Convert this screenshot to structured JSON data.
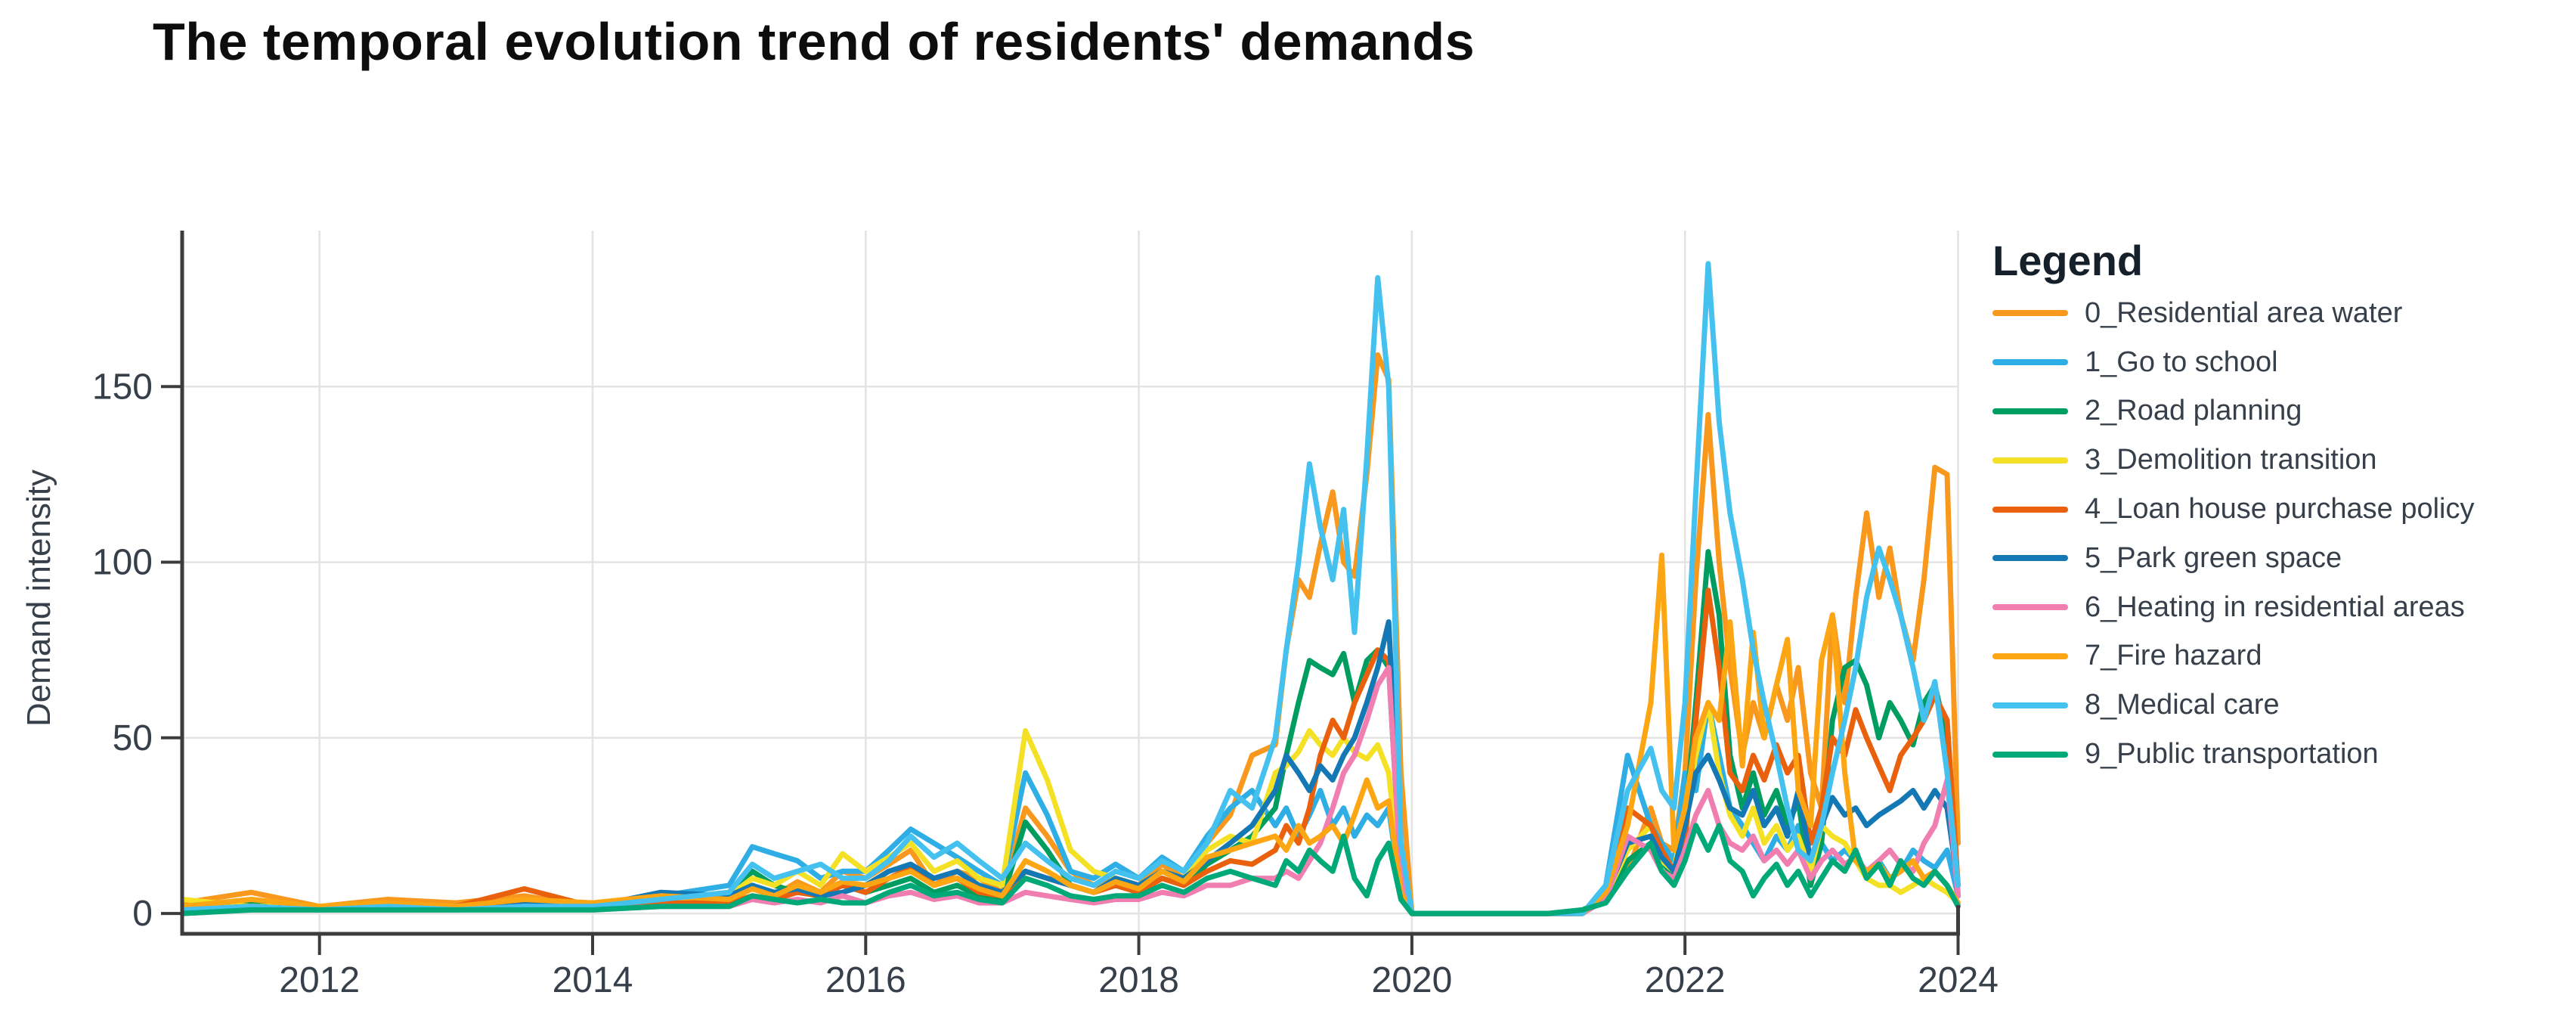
{
  "title": {
    "text": "The temporal evolution trend of residents' demands"
  },
  "y_axis": {
    "label": "Demand intensity",
    "ticks": [
      0,
      50,
      100,
      150
    ]
  },
  "x_axis": {
    "ticks": [
      2012,
      2014,
      2016,
      2018,
      2020,
      2022,
      2024
    ]
  },
  "legend": {
    "title": "Legend"
  },
  "colors": {
    "axis": "#3c3c3c",
    "grid": "#e3e3e3",
    "tick_text": "#37404a",
    "title_text": "#0d0d0d"
  },
  "chart_data": {
    "type": "line",
    "title": "The temporal evolution trend of residents' demands",
    "xlabel": "",
    "ylabel": "Demand intensity",
    "xlim": [
      2011.0,
      2024.0
    ],
    "ylim": [
      -5.8,
      194.4
    ],
    "xticks": [
      2012,
      2014,
      2016,
      2018,
      2020,
      2022,
      2024
    ],
    "yticks": [
      0,
      50,
      100,
      150
    ],
    "grid": true,
    "legend_position": "right",
    "x": [
      2011.0,
      2011.5,
      2012.0,
      2012.5,
      2013.0,
      2013.5,
      2014.0,
      2014.5,
      2015.0,
      2015.17,
      2015.33,
      2015.5,
      2015.67,
      2015.83,
      2016.0,
      2016.17,
      2016.33,
      2016.5,
      2016.67,
      2016.83,
      2017.0,
      2017.17,
      2017.33,
      2017.5,
      2017.67,
      2017.83,
      2018.0,
      2018.17,
      2018.33,
      2018.5,
      2018.67,
      2018.83,
      2019.0,
      2019.08,
      2019.17,
      2019.25,
      2019.33,
      2019.42,
      2019.5,
      2019.58,
      2019.67,
      2019.75,
      2019.83,
      2019.92,
      2020.0,
      2020.25,
      2020.5,
      2020.75,
      2021.0,
      2021.25,
      2021.42,
      2021.58,
      2021.75,
      2021.83,
      2021.92,
      2022.0,
      2022.08,
      2022.17,
      2022.25,
      2022.33,
      2022.42,
      2022.5,
      2022.58,
      2022.67,
      2022.75,
      2022.83,
      2022.92,
      2023.0,
      2023.08,
      2023.17,
      2023.25,
      2023.33,
      2023.42,
      2023.5,
      2023.58,
      2023.67,
      2023.75,
      2023.83,
      2023.92,
      2024.0
    ],
    "series": [
      {
        "name": "0_Residential area water",
        "color": "#F8981D",
        "values": [
          3,
          6,
          2,
          4,
          3,
          5,
          2,
          4,
          6,
          8,
          5,
          9,
          6,
          12,
          10,
          14,
          18,
          8,
          12,
          10,
          6,
          30,
          22,
          12,
          8,
          10,
          8,
          14,
          10,
          20,
          28,
          45,
          48,
          75,
          95,
          90,
          105,
          120,
          100,
          96,
          125,
          159,
          152,
          40,
          0,
          0,
          0,
          0,
          0,
          0,
          5,
          12,
          30,
          20,
          18,
          40,
          95,
          142,
          100,
          70,
          45,
          60,
          50,
          65,
          55,
          70,
          40,
          30,
          85,
          60,
          90,
          114,
          90,
          104,
          85,
          72,
          95,
          127,
          125,
          20
        ]
      },
      {
        "name": "1_Go to school",
        "color": "#2EAEE4",
        "values": [
          1,
          2,
          1,
          2,
          2,
          3,
          2,
          5,
          8,
          19,
          17,
          15,
          10,
          12,
          12,
          18,
          24,
          20,
          16,
          12,
          8,
          40,
          28,
          12,
          10,
          14,
          10,
          16,
          12,
          22,
          30,
          35,
          25,
          30,
          22,
          28,
          35,
          25,
          30,
          22,
          28,
          25,
          30,
          5,
          0,
          0,
          0,
          0,
          0,
          0,
          8,
          45,
          25,
          20,
          15,
          40,
          35,
          60,
          45,
          30,
          25,
          20,
          15,
          22,
          18,
          25,
          15,
          20,
          15,
          18,
          15,
          12,
          15,
          10,
          12,
          18,
          15,
          13,
          18,
          5
        ]
      },
      {
        "name": "2_Road planning",
        "color": "#009D60",
        "values": [
          1,
          3,
          1,
          2,
          2,
          2,
          2,
          3,
          4,
          12,
          8,
          6,
          5,
          8,
          6,
          8,
          10,
          6,
          8,
          5,
          4,
          26,
          18,
          8,
          6,
          8,
          6,
          10,
          8,
          14,
          18,
          22,
          30,
          45,
          60,
          72,
          70,
          68,
          74,
          60,
          72,
          75,
          70,
          10,
          0,
          0,
          0,
          0,
          0,
          1,
          4,
          15,
          20,
          15,
          10,
          25,
          60,
          103,
          85,
          45,
          30,
          40,
          28,
          35,
          25,
          32,
          8,
          20,
          55,
          70,
          72,
          65,
          50,
          60,
          55,
          48,
          60,
          65,
          50,
          5
        ]
      },
      {
        "name": "3_Demolition transition",
        "color": "#F4E125",
        "values": [
          4,
          2,
          2,
          3,
          2,
          3,
          3,
          4,
          5,
          10,
          8,
          12,
          8,
          17,
          12,
          16,
          20,
          12,
          15,
          10,
          8,
          52,
          38,
          18,
          12,
          10,
          8,
          12,
          10,
          18,
          22,
          20,
          40,
          42,
          46,
          52,
          48,
          45,
          50,
          46,
          44,
          48,
          40,
          8,
          0,
          0,
          0,
          0,
          0,
          0,
          5,
          18,
          25,
          15,
          12,
          30,
          45,
          60,
          40,
          28,
          22,
          30,
          20,
          25,
          18,
          22,
          12,
          25,
          22,
          20,
          15,
          10,
          8,
          8,
          6,
          8,
          10,
          8,
          6,
          3
        ]
      },
      {
        "name": "4_Loan house purchase policy",
        "color": "#E9610C",
        "values": [
          1,
          2,
          1,
          3,
          2,
          7,
          2,
          3,
          3,
          5,
          4,
          6,
          5,
          8,
          6,
          10,
          13,
          8,
          10,
          6,
          5,
          12,
          10,
          8,
          6,
          8,
          6,
          10,
          8,
          12,
          15,
          14,
          18,
          25,
          20,
          30,
          45,
          55,
          50,
          60,
          68,
          75,
          72,
          12,
          0,
          0,
          0,
          0,
          0,
          0,
          6,
          30,
          25,
          18,
          12,
          20,
          55,
          92,
          70,
          40,
          35,
          45,
          38,
          48,
          40,
          45,
          20,
          30,
          50,
          45,
          58,
          50,
          42,
          35,
          45,
          50,
          55,
          62,
          55,
          8
        ]
      },
      {
        "name": "5_Park green space",
        "color": "#1478B4",
        "values": [
          1,
          2,
          1,
          2,
          2,
          3,
          2,
          6,
          5,
          8,
          6,
          7,
          5,
          6,
          8,
          12,
          14,
          10,
          12,
          8,
          6,
          12,
          10,
          8,
          6,
          10,
          8,
          12,
          10,
          15,
          20,
          25,
          35,
          45,
          40,
          35,
          42,
          38,
          45,
          50,
          60,
          70,
          83,
          15,
          0,
          0,
          0,
          0,
          0,
          0,
          5,
          20,
          22,
          16,
          12,
          25,
          40,
          45,
          38,
          30,
          28,
          35,
          25,
          30,
          22,
          35,
          15,
          25,
          33,
          28,
          30,
          25,
          28,
          30,
          32,
          35,
          30,
          35,
          30,
          8
        ]
      },
      {
        "name": "6_Heating in residential areas",
        "color": "#F07EB1",
        "values": [
          0,
          1,
          1,
          1,
          1,
          2,
          1,
          2,
          2,
          4,
          3,
          4,
          3,
          5,
          3,
          5,
          6,
          4,
          5,
          3,
          3,
          6,
          5,
          4,
          3,
          4,
          4,
          6,
          5,
          8,
          8,
          10,
          10,
          12,
          10,
          15,
          20,
          30,
          40,
          45,
          55,
          65,
          70,
          10,
          0,
          0,
          0,
          0,
          0,
          0,
          4,
          22,
          18,
          12,
          10,
          18,
          28,
          35,
          25,
          20,
          18,
          22,
          15,
          18,
          14,
          18,
          10,
          15,
          18,
          14,
          16,
          12,
          15,
          18,
          14,
          12,
          20,
          25,
          38,
          5
        ]
      },
      {
        "name": "7_Fire hazard",
        "color": "#FCA613",
        "values": [
          2,
          4,
          2,
          3,
          2,
          4,
          3,
          5,
          4,
          7,
          5,
          8,
          6,
          9,
          8,
          10,
          12,
          8,
          10,
          7,
          5,
          15,
          12,
          8,
          6,
          9,
          7,
          12,
          9,
          16,
          18,
          20,
          22,
          18,
          25,
          20,
          22,
          25,
          20,
          28,
          38,
          30,
          32,
          6,
          0,
          0,
          0,
          0,
          0,
          0,
          6,
          25,
          60,
          102,
          18,
          30,
          50,
          60,
          55,
          83,
          42,
          80,
          50,
          65,
          78,
          35,
          25,
          72,
          85,
          40,
          15,
          12,
          14,
          10,
          12,
          15,
          10,
          12,
          8,
          3
        ]
      },
      {
        "name": "8_Medical care",
        "color": "#45C1F0",
        "values": [
          1,
          2,
          1,
          2,
          1,
          2,
          2,
          4,
          6,
          14,
          10,
          12,
          14,
          10,
          10,
          15,
          22,
          16,
          20,
          15,
          10,
          20,
          15,
          10,
          8,
          12,
          10,
          15,
          12,
          20,
          35,
          30,
          50,
          75,
          100,
          128,
          110,
          95,
          115,
          80,
          130,
          181,
          150,
          20,
          0,
          0,
          0,
          0,
          0,
          0,
          8,
          35,
          47,
          35,
          30,
          60,
          120,
          185,
          140,
          114,
          95,
          75,
          60,
          45,
          30,
          18,
          15,
          25,
          40,
          55,
          70,
          90,
          104,
          95,
          85,
          70,
          55,
          66,
          40,
          8
        ]
      },
      {
        "name": "9_Public transportation",
        "color": "#00A977",
        "values": [
          0,
          1,
          1,
          1,
          1,
          1,
          1,
          2,
          2,
          5,
          4,
          3,
          4,
          3,
          3,
          6,
          8,
          5,
          6,
          4,
          3,
          10,
          8,
          5,
          4,
          5,
          5,
          8,
          6,
          10,
          12,
          10,
          8,
          15,
          12,
          18,
          15,
          12,
          22,
          10,
          5,
          15,
          20,
          4,
          0,
          0,
          0,
          0,
          0,
          1,
          3,
          12,
          20,
          12,
          8,
          15,
          25,
          18,
          25,
          15,
          12,
          5,
          10,
          14,
          8,
          12,
          5,
          10,
          15,
          12,
          18,
          10,
          14,
          8,
          15,
          10,
          8,
          12,
          8,
          2
        ]
      }
    ]
  }
}
